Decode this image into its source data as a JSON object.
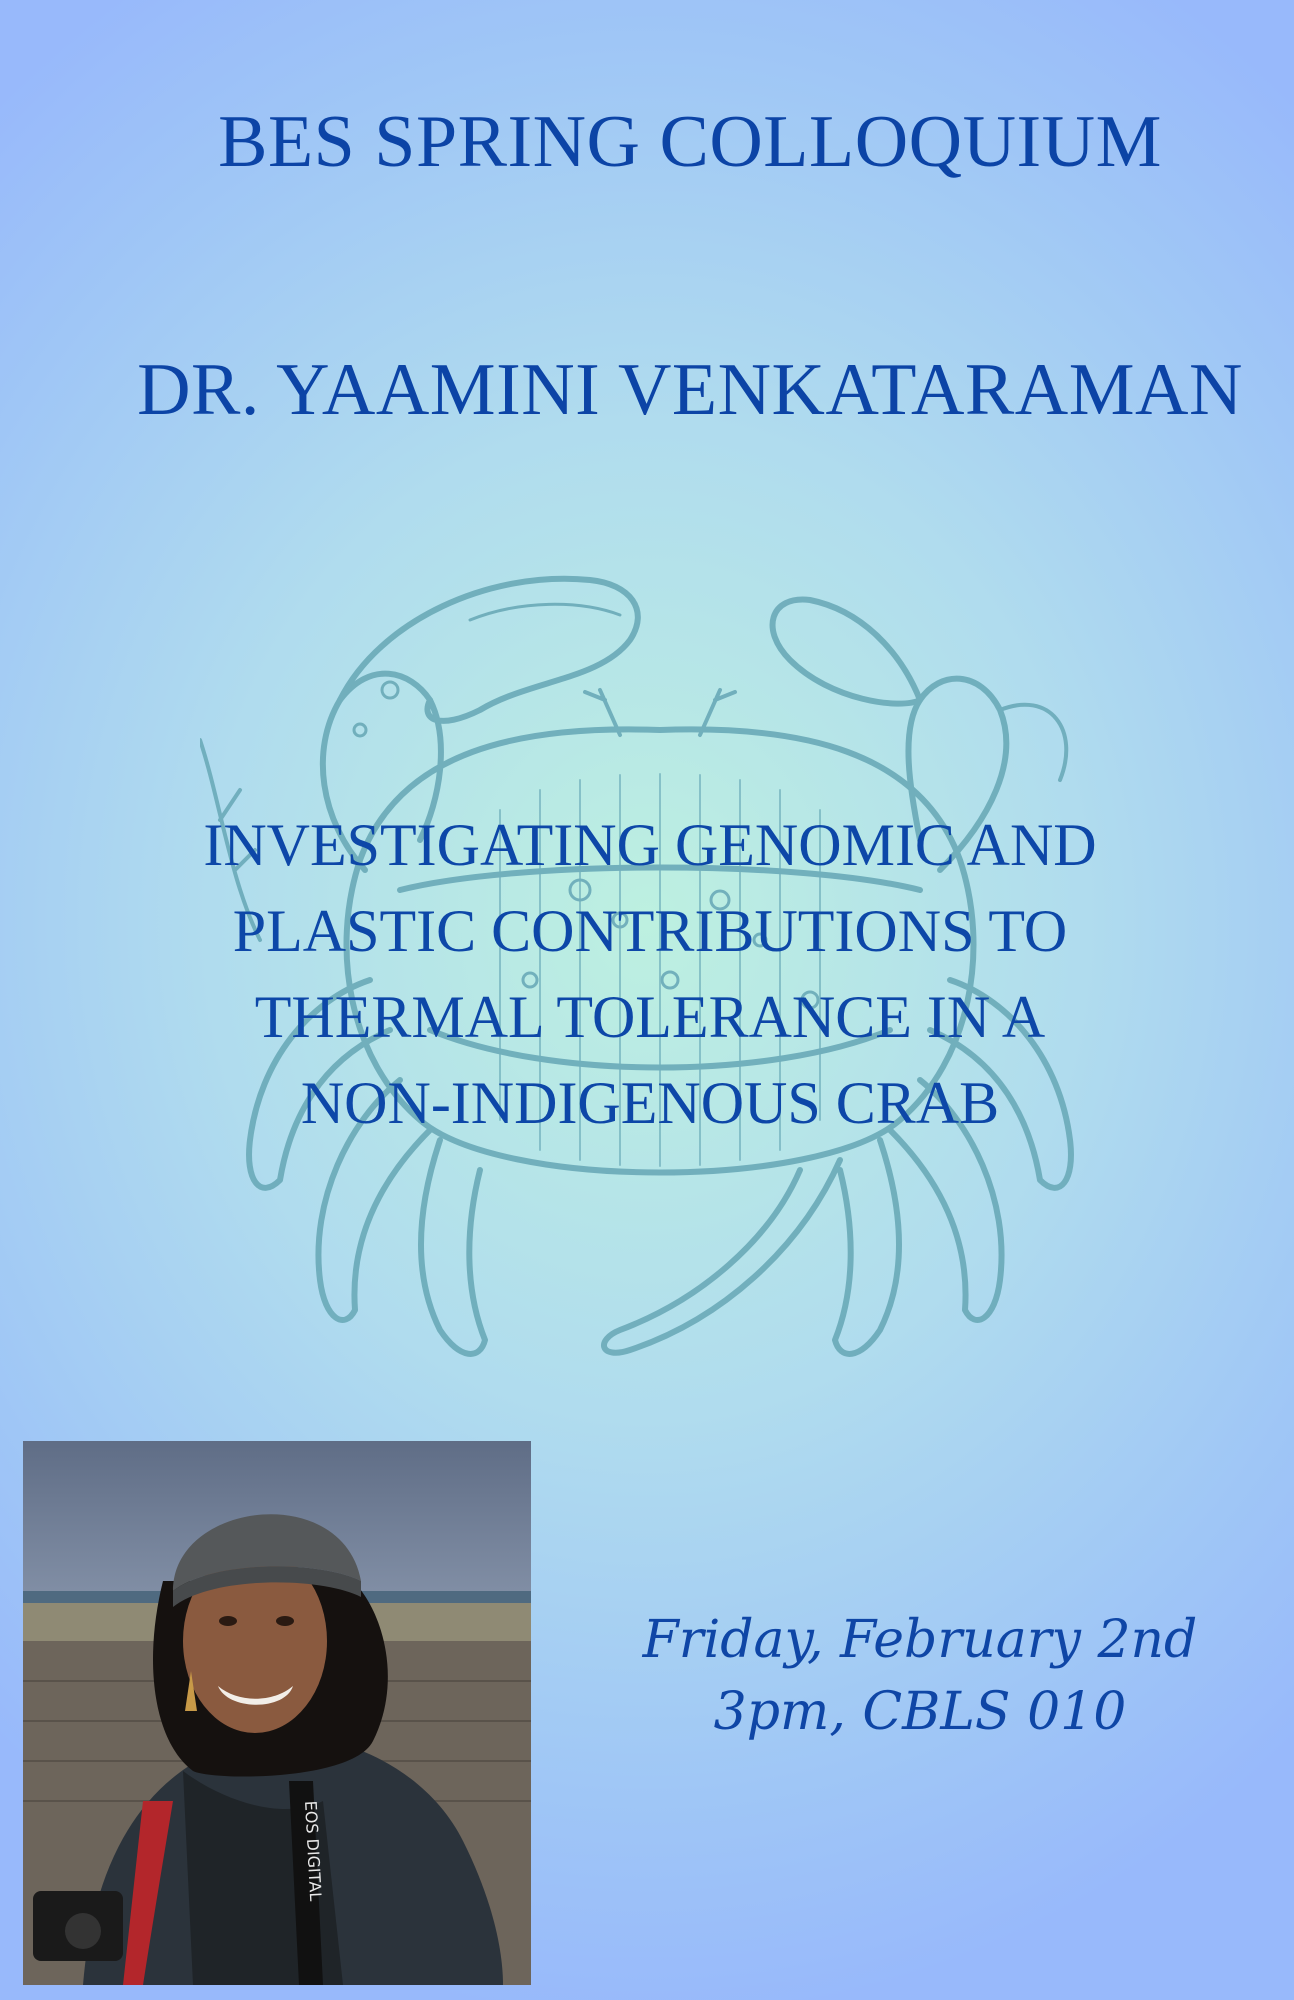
{
  "poster": {
    "event_title": "BES SPRING COLLOQUIUM",
    "speaker": "DR. YAAMINI VENKATARAMAN",
    "talk_title_lines": [
      "INVESTIGATING GENOMIC AND",
      "PLASTIC CONTRIBUTIONS TO",
      "THERMAL TOLERANCE IN A",
      "NON-INDIGENOUS CRAB"
    ],
    "date": "Friday, February 2nd",
    "time_location": "3pm, CBLS 010",
    "camera_strap_text": "EOS DIGITAL"
  },
  "icons": {
    "background_illustration": "crab-icon",
    "speaker_photo": "speaker-photo"
  },
  "colors": {
    "text": "#0c44a6",
    "crab": "#6aaab8",
    "background_center": "#bdf0e0",
    "background_edge": "#98b9fb"
  }
}
